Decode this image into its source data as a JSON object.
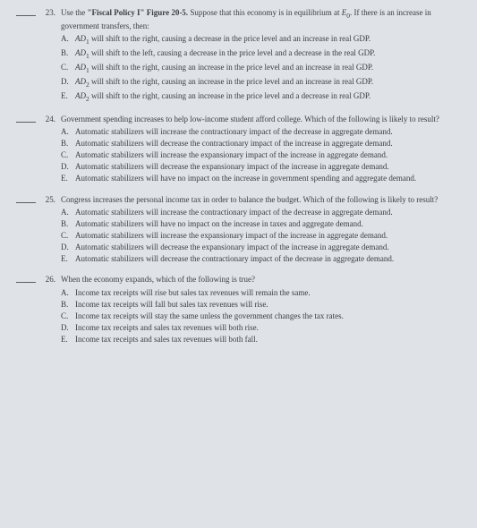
{
  "questions": [
    {
      "num": "23.",
      "lead_in": "Use the ",
      "bold_part": "\"Fiscal Policy I\" Figure 20-5.",
      "after_bold": " Suppose that this economy is in equilibrium at ",
      "italic_part": "E",
      "sub_part": "0",
      "tail": ". If there is an increase in government transfers, then:",
      "options": [
        {
          "l": "A.",
          "pre": "AD",
          "sub": "1",
          "post": " will shift to the right, causing a decrease in the price level and an increase in real GDP."
        },
        {
          "l": "B.",
          "pre": "AD",
          "sub": "1",
          "post": " will shift to the left, causing a decrease in the price level and a decrease in the real GDP."
        },
        {
          "l": "C.",
          "pre": "AD",
          "sub": "1",
          "post": " will shift to the right, causing an increase in the price level and an increase in real GDP."
        },
        {
          "l": "D.",
          "pre": "AD",
          "sub": "2",
          "post": " will shift to the right, causing an increase in the price level and an increase in real GDP."
        },
        {
          "l": "E.",
          "pre": "AD",
          "sub": "2",
          "post": " will shift to the right, causing an increase in the price level and a decrease in real GDP."
        }
      ]
    },
    {
      "num": "24.",
      "text": "Government spending increases to help low-income student afford college. Which of the following is likely to result?",
      "options": [
        {
          "l": "A.",
          "t": "Automatic stabilizers will increase the contractionary impact of the decrease in aggregate demand."
        },
        {
          "l": "B.",
          "t": "Automatic stabilizers will decrease the contractionary impact of the increase in aggregate demand."
        },
        {
          "l": "C.",
          "t": "Automatic stabilizers will increase the expansionary impact of the increase in aggregate demand."
        },
        {
          "l": "D.",
          "t": "Automatic stabilizers will decrease the expansionary impact of the increase in aggregate demand."
        },
        {
          "l": "E.",
          "t": "Automatic stabilizers will have no impact on the increase in government spending and aggregate demand."
        }
      ]
    },
    {
      "num": "25.",
      "text": "Congress increases the personal income tax in order to balance the budget. Which of the following is likely to result?",
      "options": [
        {
          "l": "A.",
          "t": "Automatic stabilizers will increase the contractionary impact of the decrease in aggregate demand."
        },
        {
          "l": "B.",
          "t": "Automatic stabilizers will have no impact on the increase in taxes and aggregate demand."
        },
        {
          "l": "C.",
          "t": "Automatic stabilizers will increase the expansionary impact of the increase in aggregate demand."
        },
        {
          "l": "D.",
          "t": "Automatic stabilizers will decrease the expansionary impact of the increase in aggregate demand."
        },
        {
          "l": "E.",
          "t": "Automatic stabilizers will decrease the contractionary impact of the decrease in aggregate demand."
        }
      ]
    },
    {
      "num": "26.",
      "text": "When the economy expands, which of the following is true?",
      "options": [
        {
          "l": "A.",
          "t": "Income tax receipts will rise but sales tax revenues will remain the same."
        },
        {
          "l": "B.",
          "t": "Income tax receipts will fall but sales tax revenues will rise."
        },
        {
          "l": "C.",
          "t": "Income tax receipts will stay the same unless the government changes the tax rates."
        },
        {
          "l": "D.",
          "t": "Income tax receipts and sales tax revenues will both rise."
        },
        {
          "l": "E.",
          "t": "Income tax receipts and sales tax revenues will both fall."
        }
      ]
    }
  ]
}
